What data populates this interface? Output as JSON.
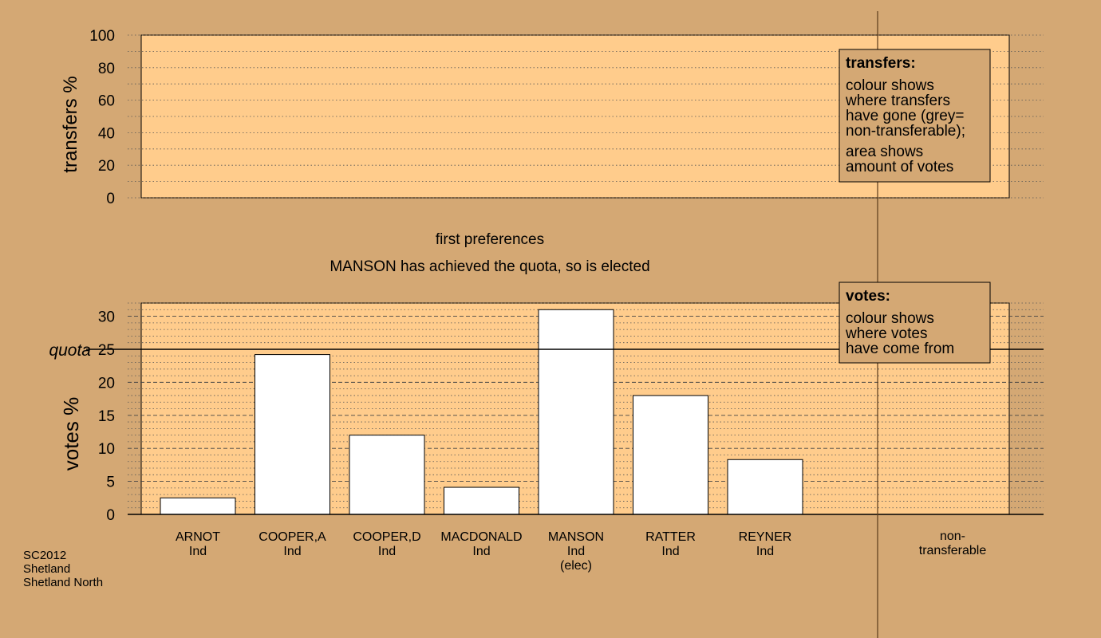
{
  "colors": {
    "background": "#d4a874",
    "plot_fill": "#ffcc8c",
    "bar_fill": "#ffffff",
    "legend_fill": "#d4a874"
  },
  "status": {
    "stage": "first preferences",
    "message": "MANSON has achieved the quota, so is elected"
  },
  "footer": [
    "SC2012",
    "Shetland",
    "Shetland North"
  ],
  "legend_transfers": {
    "title": "transfers:",
    "lines_a": [
      "colour shows",
      "where transfers",
      "have gone (grey=",
      "non-transferable);"
    ],
    "lines_b": [
      "area shows",
      "amount of votes"
    ]
  },
  "legend_votes": {
    "title": "votes:",
    "lines": [
      "colour shows",
      "where votes",
      "have come from"
    ]
  },
  "chart_data": [
    {
      "type": "bar",
      "ylabel": "transfers %",
      "ylim": [
        0,
        100
      ],
      "yticks": [
        0,
        20,
        40,
        60,
        80,
        100
      ],
      "values": []
    },
    {
      "type": "bar",
      "ylabel": "votes %",
      "ylim": [
        0,
        32
      ],
      "yticks": [
        0,
        5,
        10,
        15,
        20,
        25,
        30
      ],
      "quota": {
        "label": "quota",
        "value": 25
      },
      "categories": [
        {
          "lines": [
            "ARNOT",
            "Ind"
          ],
          "value": 2.5
        },
        {
          "lines": [
            "COOPER,A",
            "Ind"
          ],
          "value": 24.2
        },
        {
          "lines": [
            "COOPER,D",
            "Ind"
          ],
          "value": 12.0
        },
        {
          "lines": [
            "MACDONALD",
            "Ind"
          ],
          "value": 4.1
        },
        {
          "lines": [
            "MANSON",
            "Ind",
            "(elec)"
          ],
          "value": 31.0
        },
        {
          "lines": [
            "RATTER",
            "Ind"
          ],
          "value": 18.0
        },
        {
          "lines": [
            "REYNER",
            "Ind"
          ],
          "value": 8.3
        }
      ],
      "extra_category": {
        "lines": [
          "non-",
          "transferable"
        ]
      }
    }
  ]
}
